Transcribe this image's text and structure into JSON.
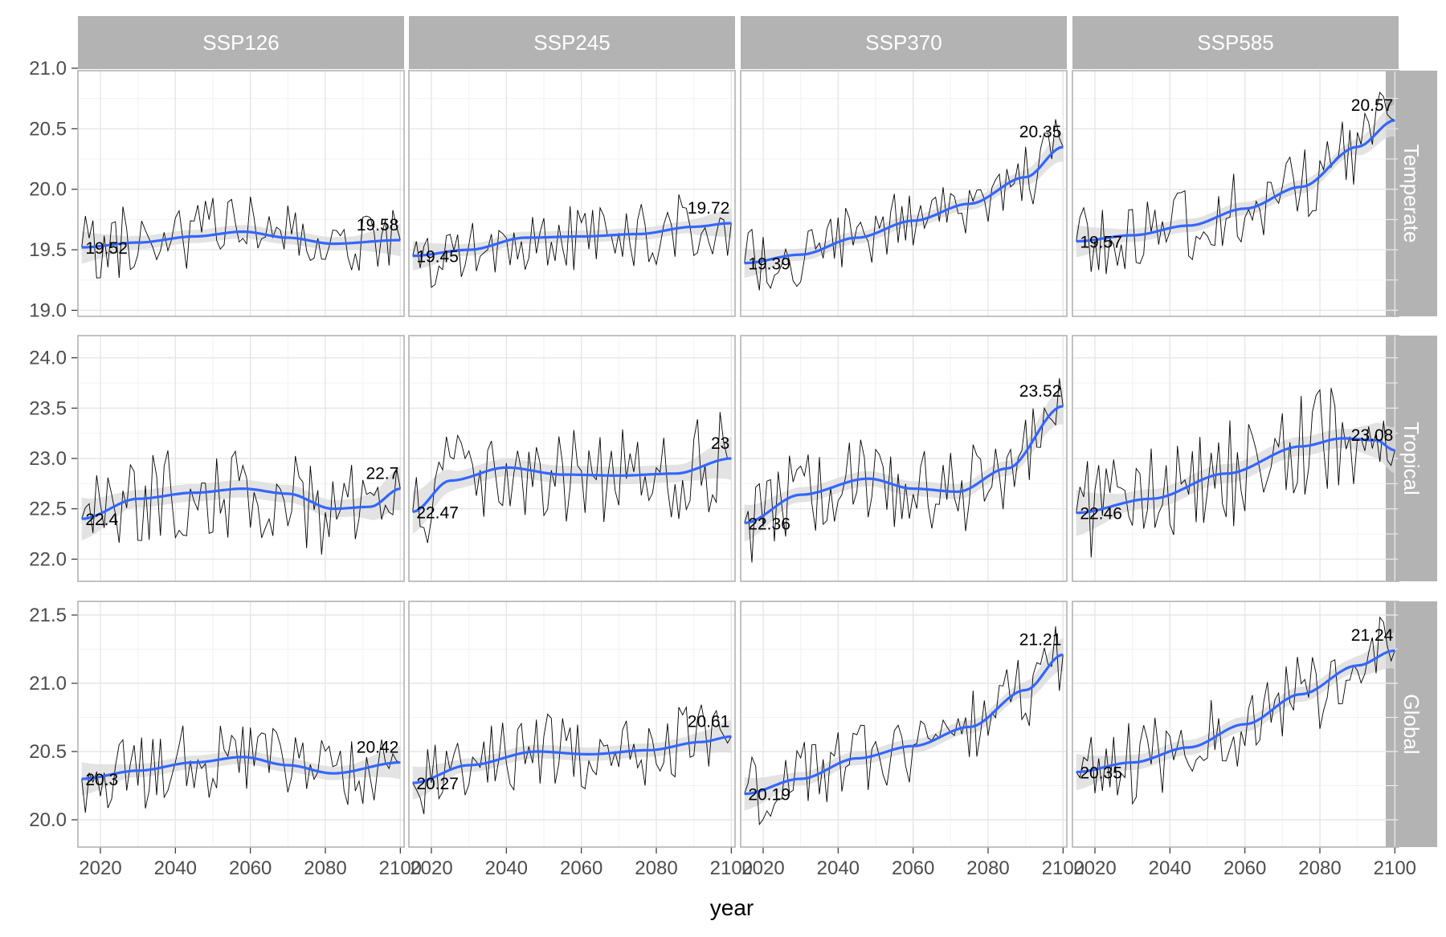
{
  "chart_data": {
    "type": "line",
    "xlabel": "year",
    "ylabel": "",
    "columns": [
      "SSP126",
      "SSP245",
      "SSP370",
      "SSP585"
    ],
    "rows": [
      "Temperate",
      "Tropical",
      "Global"
    ],
    "xlim": [
      2014,
      2101
    ],
    "x_ticks": [
      2020,
      2040,
      2060,
      2080,
      2100
    ],
    "row_axes": [
      {
        "row": "Temperate",
        "ylim": [
          18.95,
          20.98
        ],
        "ticks": [
          "19.0",
          "19.5",
          "20.0",
          "20.5",
          "21.0"
        ]
      },
      {
        "row": "Tropical",
        "ylim": [
          21.78,
          24.22
        ],
        "ticks": [
          "22.0",
          "22.5",
          "23.0",
          "23.5",
          "24.0"
        ]
      },
      {
        "row": "Global",
        "ylim": [
          19.8,
          21.6
        ],
        "ticks": [
          "20.0",
          "20.5",
          "21.0",
          "21.5"
        ]
      }
    ],
    "grid": true,
    "colors": {
      "smooth": "#3366ff",
      "band": "#d9d9d9",
      "raw": "#000000",
      "strip": "#b3b3b3",
      "frame": "#b3b3b3",
      "grid": "#ebebeb"
    },
    "panels": [
      {
        "row": "Temperate",
        "col": "SSP126",
        "start_label": "19.52",
        "end_label": "19.58",
        "start": 19.52,
        "end": 19.58,
        "smooth_x": [
          2015,
          2030,
          2045,
          2058,
          2070,
          2082,
          2100
        ],
        "smooth_y": [
          19.52,
          19.56,
          19.61,
          19.65,
          19.6,
          19.55,
          19.58
        ],
        "noise": 0.22,
        "seed": 11
      },
      {
        "row": "Temperate",
        "col": "SSP245",
        "start_label": "19.45",
        "end_label": "19.72",
        "start": 19.45,
        "end": 19.72,
        "smooth_x": [
          2015,
          2030,
          2045,
          2060,
          2075,
          2090,
          2100
        ],
        "smooth_y": [
          19.45,
          19.5,
          19.6,
          19.61,
          19.63,
          19.69,
          19.72
        ],
        "noise": 0.2,
        "seed": 23
      },
      {
        "row": "Temperate",
        "col": "SSP370",
        "start_label": "19.39",
        "end_label": "20.35",
        "start": 19.39,
        "end": 20.35,
        "smooth_x": [
          2015,
          2030,
          2045,
          2060,
          2075,
          2090,
          2100
        ],
        "smooth_y": [
          19.39,
          19.46,
          19.6,
          19.74,
          19.88,
          20.1,
          20.35
        ],
        "noise": 0.2,
        "seed": 37
      },
      {
        "row": "Temperate",
        "col": "SSP585",
        "start_label": "19.57",
        "end_label": "20.57",
        "start": 19.57,
        "end": 20.57,
        "smooth_x": [
          2015,
          2030,
          2045,
          2060,
          2075,
          2090,
          2100
        ],
        "smooth_y": [
          19.57,
          19.62,
          19.7,
          19.84,
          20.02,
          20.35,
          20.57
        ],
        "noise": 0.22,
        "seed": 41
      },
      {
        "row": "Tropical",
        "col": "SSP126",
        "start_label": "22.4",
        "end_label": "22.7",
        "start": 22.4,
        "end": 22.7,
        "smooth_x": [
          2015,
          2030,
          2045,
          2058,
          2070,
          2082,
          2092,
          2100
        ],
        "smooth_y": [
          22.4,
          22.6,
          22.66,
          22.7,
          22.65,
          22.5,
          22.52,
          22.7
        ],
        "noise": 0.35,
        "seed": 53
      },
      {
        "row": "Tropical",
        "col": "SSP245",
        "start_label": "22.47",
        "end_label": "23",
        "start": 22.47,
        "end": 23.0,
        "smooth_x": [
          2015,
          2025,
          2040,
          2055,
          2070,
          2085,
          2100
        ],
        "smooth_y": [
          22.47,
          22.78,
          22.91,
          22.84,
          22.83,
          22.85,
          23.0
        ],
        "noise": 0.35,
        "seed": 67
      },
      {
        "row": "Tropical",
        "col": "SSP370",
        "start_label": "22.36",
        "end_label": "23.52",
        "start": 22.36,
        "end": 23.52,
        "smooth_x": [
          2015,
          2030,
          2048,
          2060,
          2072,
          2085,
          2100
        ],
        "smooth_y": [
          22.36,
          22.64,
          22.8,
          22.7,
          22.67,
          22.9,
          23.52
        ],
        "noise": 0.3,
        "seed": 79
      },
      {
        "row": "Tropical",
        "col": "SSP585",
        "start_label": "22.46",
        "end_label": "23.08",
        "start": 22.46,
        "end": 23.08,
        "smooth_x": [
          2015,
          2035,
          2055,
          2075,
          2086,
          2095,
          2100
        ],
        "smooth_y": [
          22.46,
          22.6,
          22.85,
          23.12,
          23.2,
          23.18,
          23.08
        ],
        "noise": 0.38,
        "seed": 97
      },
      {
        "row": "Global",
        "col": "SSP126",
        "start_label": "20.3",
        "end_label": "20.42",
        "start": 20.3,
        "end": 20.42,
        "smooth_x": [
          2015,
          2030,
          2045,
          2058,
          2070,
          2082,
          2100
        ],
        "smooth_y": [
          20.3,
          20.36,
          20.42,
          20.46,
          20.4,
          20.34,
          20.42
        ],
        "noise": 0.2,
        "seed": 103
      },
      {
        "row": "Global",
        "col": "SSP245",
        "start_label": "20.27",
        "end_label": "20.61",
        "start": 20.27,
        "end": 20.61,
        "smooth_x": [
          2015,
          2030,
          2048,
          2062,
          2078,
          2092,
          2100
        ],
        "smooth_y": [
          20.27,
          20.4,
          20.5,
          20.48,
          20.51,
          20.57,
          20.61
        ],
        "noise": 0.2,
        "seed": 113
      },
      {
        "row": "Global",
        "col": "SSP370",
        "start_label": "20.19",
        "end_label": "21.21",
        "start": 20.19,
        "end": 21.21,
        "smooth_x": [
          2015,
          2030,
          2045,
          2060,
          2075,
          2090,
          2100
        ],
        "smooth_y": [
          20.19,
          20.3,
          20.45,
          20.54,
          20.68,
          20.95,
          21.21
        ],
        "noise": 0.2,
        "seed": 127
      },
      {
        "row": "Global",
        "col": "SSP585",
        "start_label": "20.35",
        "end_label": "21.24",
        "start": 20.35,
        "end": 21.24,
        "smooth_x": [
          2015,
          2030,
          2045,
          2060,
          2075,
          2090,
          2100
        ],
        "smooth_y": [
          20.35,
          20.42,
          20.53,
          20.7,
          20.92,
          21.13,
          21.24
        ],
        "noise": 0.22,
        "seed": 139
      }
    ]
  }
}
